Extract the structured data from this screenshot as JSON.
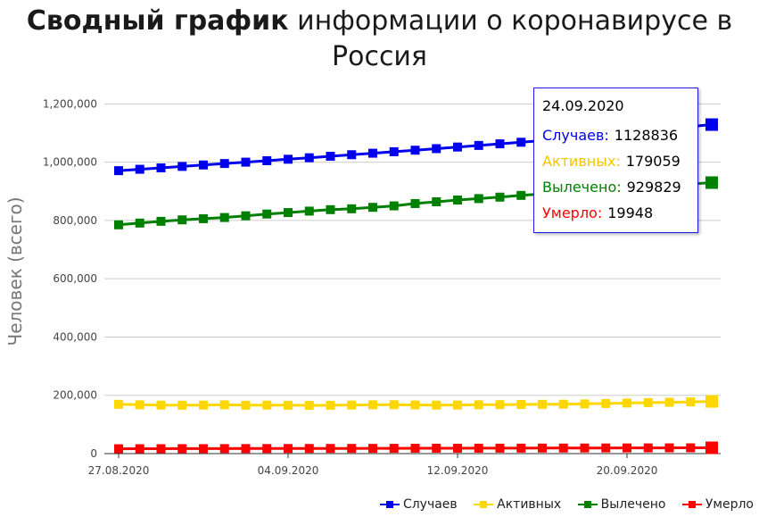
{
  "title_bold": "Сводный график",
  "title_rest": "информации о коронавирусе в Россия",
  "chart_data": {
    "type": "line",
    "ylabel": "Человек (всего)",
    "ylim": [
      0,
      1250000
    ],
    "yticks": [
      "0",
      "200,000",
      "400,000",
      "600,000",
      "800,000",
      "1,000,000",
      "1,200,000"
    ],
    "ytick_values": [
      0,
      200000,
      400000,
      600000,
      800000,
      1000000,
      1200000
    ],
    "x": [
      "27.08",
      "28.08",
      "29.08",
      "30.08",
      "31.08",
      "01.09",
      "02.09",
      "03.09",
      "04.09",
      "05.09",
      "06.09",
      "07.09",
      "08.09",
      "09.09",
      "10.09",
      "11.09",
      "12.09",
      "13.09",
      "14.09",
      "15.09",
      "16.09",
      "17.09",
      "18.09",
      "19.09",
      "20.09",
      "21.09",
      "22.09",
      "23.09",
      "24.09"
    ],
    "xticks": [
      "27.08.2020",
      "04.09.2020",
      "12.09.2020",
      "20.09.2020"
    ],
    "xtick_index": [
      0,
      8,
      16,
      24
    ],
    "series": [
      {
        "name": "Случаев",
        "color": "#0000ee",
        "values": [
          970865,
          975576,
          980405,
          985346,
          990326,
          995319,
          1000048,
          1005000,
          1009995,
          1015105,
          1020310,
          1025505,
          1030690,
          1035789,
          1041007,
          1046370,
          1051874,
          1057362,
          1062811,
          1068320,
          1073849,
          1081152,
          1091186,
          1103399,
          1109595,
          1115810,
          1122241,
          1122241,
          1128836
        ]
      },
      {
        "name": "Активных",
        "color": "#ffd700",
        "values": [
          169000,
          167500,
          166500,
          166000,
          166500,
          167500,
          166000,
          166500,
          166000,
          165500,
          165800,
          166700,
          167400,
          167800,
          167000,
          166500,
          166800,
          167500,
          168000,
          168500,
          169000,
          169500,
          170500,
          172000,
          173500,
          175000,
          176000,
          177500,
          179059
        ]
      },
      {
        "name": "Вылечено",
        "color": "#008000",
        "values": [
          785000,
          791000,
          797000,
          802000,
          806000,
          810000,
          816000,
          822000,
          827000,
          832000,
          837000,
          840000,
          845000,
          850000,
          858000,
          864000,
          870000,
          875000,
          880000,
          886000,
          891000,
          897000,
          903000,
          908000,
          912000,
          916000,
          920000,
          925000,
          929829
        ]
      },
      {
        "name": "Умерло",
        "color": "#ff0000",
        "values": [
          16683,
          16804,
          16914,
          17025,
          17128,
          17250,
          17365,
          17479,
          17528,
          17649,
          17759,
          17871,
          17993,
          18135,
          18365,
          18484,
          18484,
          18579,
          18707,
          18785,
          18917,
          19061,
          19195,
          19379,
          19489,
          19649,
          19720,
          19799,
          19948
        ]
      }
    ],
    "legend": "bottom-right",
    "grid": true
  },
  "tooltip": {
    "date": "24.09.2020",
    "rows": [
      {
        "label": "Случаев:",
        "value": "1128836",
        "color": "#0000ee"
      },
      {
        "label": "Активных:",
        "value": "179059",
        "color": "#ffd700"
      },
      {
        "label": "Вылечено:",
        "value": "929829",
        "color": "#008000"
      },
      {
        "label": "Умерло:",
        "value": "19948",
        "color": "#ff0000"
      }
    ]
  }
}
